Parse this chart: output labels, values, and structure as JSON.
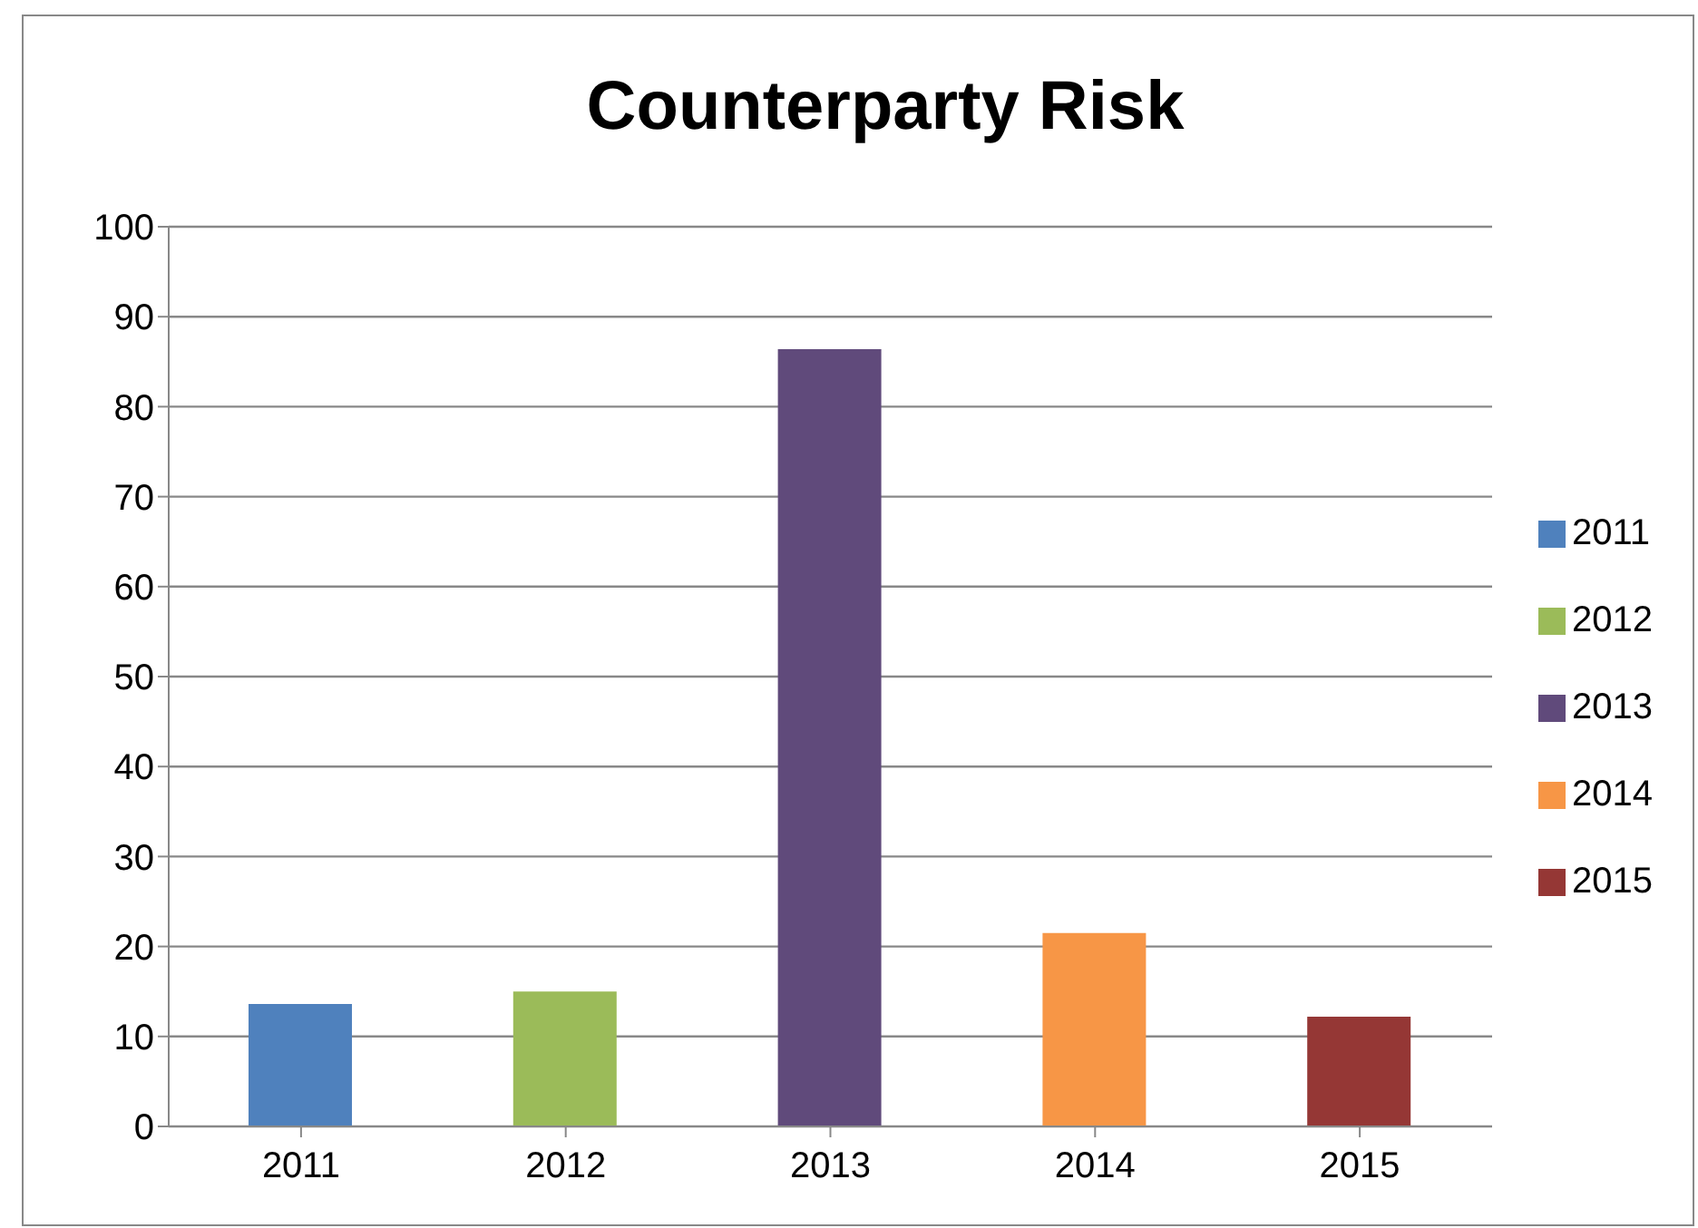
{
  "chart_data": {
    "type": "bar",
    "title": "Counterparty Risk",
    "categories": [
      "2011",
      "2012",
      "2013",
      "2014",
      "2015"
    ],
    "series": [
      {
        "name": "2011",
        "color": "#4f81bd",
        "values": [
          13.6,
          null,
          null,
          null,
          null
        ]
      },
      {
        "name": "2012",
        "color": "#9bbb59",
        "values": [
          null,
          15.0,
          null,
          null,
          null
        ]
      },
      {
        "name": "2013",
        "color": "#604a7b",
        "values": [
          null,
          null,
          86.4,
          null,
          null
        ]
      },
      {
        "name": "2014",
        "color": "#f79646",
        "values": [
          null,
          null,
          null,
          21.5,
          null
        ]
      },
      {
        "name": "2015",
        "color": "#953735",
        "values": [
          null,
          null,
          null,
          null,
          12.2
        ]
      }
    ],
    "stacked": true,
    "ylim": [
      0,
      100
    ],
    "yticks": [
      0,
      10,
      20,
      30,
      40,
      50,
      60,
      70,
      80,
      90,
      100
    ],
    "grid": "y",
    "legend": "right"
  }
}
